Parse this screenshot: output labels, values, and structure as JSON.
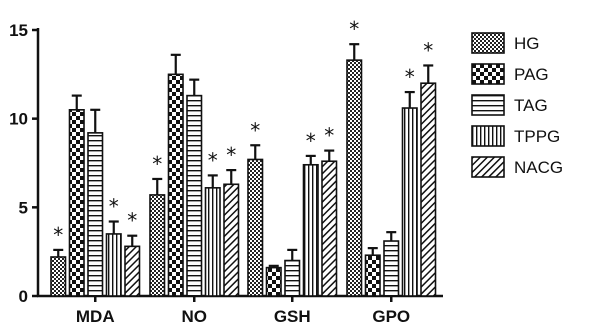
{
  "chart_data": {
    "type": "bar",
    "title": "",
    "xlabel": "",
    "ylabel": "",
    "ylim": [
      0,
      15
    ],
    "yticks": [
      0,
      5,
      10,
      15
    ],
    "grid": false,
    "legend_position": "right",
    "categories": [
      "MDA",
      "NO",
      "GSH",
      "GPO"
    ],
    "series": [
      {
        "name": "HG",
        "pattern": "dense-checker",
        "values": [
          2.2,
          5.7,
          7.7,
          13.3
        ],
        "errors": [
          0.4,
          0.9,
          0.8,
          0.9
        ],
        "significance": [
          "*",
          "*",
          "*",
          "*"
        ]
      },
      {
        "name": "PAG",
        "pattern": "large-checker",
        "values": [
          10.5,
          12.5,
          1.6,
          2.3
        ],
        "errors": [
          0.8,
          1.1,
          0.1,
          0.4
        ],
        "significance": [
          "",
          "",
          "",
          ""
        ]
      },
      {
        "name": "TAG",
        "pattern": "horizontal-stripes",
        "values": [
          9.2,
          11.3,
          2.0,
          3.1
        ],
        "errors": [
          1.3,
          0.9,
          0.6,
          0.5
        ],
        "significance": [
          "",
          "",
          "",
          ""
        ]
      },
      {
        "name": "TPPG",
        "pattern": "vertical-stripes",
        "values": [
          3.5,
          6.1,
          7.4,
          10.6
        ],
        "errors": [
          0.7,
          0.7,
          0.5,
          0.9
        ],
        "significance": [
          "*",
          "*",
          "*",
          "*"
        ]
      },
      {
        "name": "NACG",
        "pattern": "diagonal-stripes",
        "values": [
          2.8,
          6.3,
          7.6,
          12.0
        ],
        "errors": [
          0.6,
          0.8,
          0.6,
          1.0
        ],
        "significance": [
          "*",
          "*",
          "*",
          "*"
        ]
      }
    ]
  }
}
